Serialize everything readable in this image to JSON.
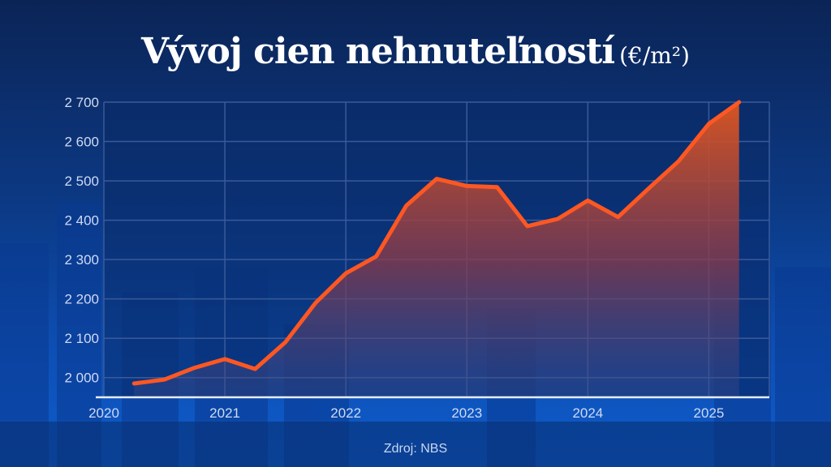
{
  "title": {
    "main": "Vývoj cien nehnuteľností",
    "unit": "(€/m²)"
  },
  "source": "Zdroj: NBS",
  "colors": {
    "line": "#ff5722",
    "grid": "#3a5a9a",
    "axis": "#e6ecf8"
  },
  "chart_data": {
    "type": "area",
    "title": "Vývoj cien nehnuteľností (€/m²)",
    "xlabel": "",
    "ylabel": "",
    "xlim": [
      2020,
      2025.5
    ],
    "ylim": [
      1950,
      2700
    ],
    "x_ticks": [
      2020,
      2021,
      2022,
      2023,
      2024,
      2025
    ],
    "x_tick_labels": [
      "2020",
      "2021",
      "2022",
      "2023",
      "2024",
      "2025"
    ],
    "y_ticks": [
      2000,
      2100,
      2200,
      2300,
      2400,
      2500,
      2600,
      2700
    ],
    "y_tick_labels": [
      "2 000",
      "2 100",
      "2 200",
      "2 300",
      "2 400",
      "2 500",
      "2 600",
      "2 700"
    ],
    "grid": true,
    "series": [
      {
        "x": [
          2020.25,
          2020.5,
          2020.75,
          2021.0,
          2021.25,
          2021.5,
          2021.75,
          2022.0,
          2022.25,
          2022.5,
          2022.75,
          2023.0,
          2023.25,
          2023.5,
          2023.75,
          2024.0,
          2024.25,
          2024.5,
          2024.75,
          2025.0,
          2025.25
        ],
        "y": [
          1985,
          1995,
          2025,
          2047,
          2022,
          2090,
          2190,
          2265,
          2308,
          2437,
          2505,
          2487,
          2484,
          2385,
          2403,
          2450,
          2408,
          2480,
          2550,
          2645,
          2700
        ]
      }
    ]
  }
}
